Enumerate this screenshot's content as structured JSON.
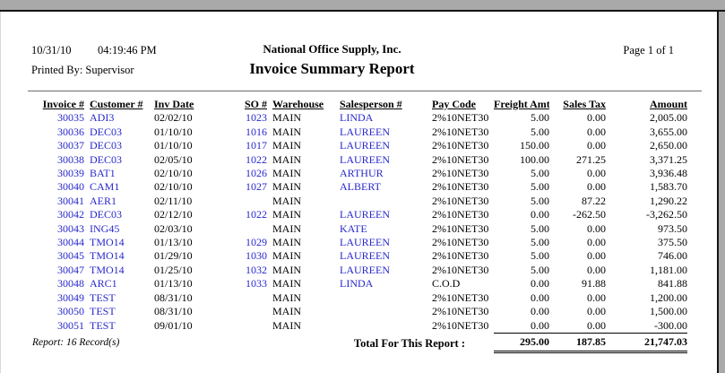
{
  "window": {
    "topbar_color": "#a9a9a9"
  },
  "header": {
    "date": "10/31/10",
    "time": "04:19:46 PM",
    "company": "National Office Supply, Inc.",
    "page_label": "Page 1 of 1",
    "printed_by": "Printed By: Supervisor",
    "title": "Invoice Summary Report"
  },
  "table": {
    "columns": [
      "Invoice #",
      "Customer #",
      "Inv Date",
      "SO #",
      "Warehouse",
      "Salesperson #",
      "Pay Code",
      "Freight Amt",
      "Sales Tax",
      "Amount"
    ],
    "rows": [
      [
        "30035",
        "ADI3",
        "02/02/10",
        "1023",
        "MAIN",
        "LINDA",
        "2%10NET30",
        "5.00",
        "0.00",
        "2,005.00"
      ],
      [
        "30036",
        "DEC03",
        "01/10/10",
        "1016",
        "MAIN",
        "LAUREEN",
        "2%10NET30",
        "5.00",
        "0.00",
        "3,655.00"
      ],
      [
        "30037",
        "DEC03",
        "01/10/10",
        "1017",
        "MAIN",
        "LAUREEN",
        "2%10NET30",
        "150.00",
        "0.00",
        "2,650.00"
      ],
      [
        "30038",
        "DEC03",
        "02/05/10",
        "1022",
        "MAIN",
        "LAUREEN",
        "2%10NET30",
        "100.00",
        "271.25",
        "3,371.25"
      ],
      [
        "30039",
        "BAT1",
        "02/10/10",
        "1026",
        "MAIN",
        "ARTHUR",
        "2%10NET30",
        "5.00",
        "0.00",
        "3,936.48"
      ],
      [
        "30040",
        "CAM1",
        "02/10/10",
        "1027",
        "MAIN",
        "ALBERT",
        "2%10NET30",
        "5.00",
        "0.00",
        "1,583.70"
      ],
      [
        "30041",
        "AER1",
        "02/11/10",
        "",
        "MAIN",
        "",
        "2%10NET30",
        "5.00",
        "87.22",
        "1,290.22"
      ],
      [
        "30042",
        "DEC03",
        "02/12/10",
        "1022",
        "MAIN",
        "LAUREEN",
        "2%10NET30",
        "0.00",
        "-262.50",
        "-3,262.50"
      ],
      [
        "30043",
        "ING45",
        "02/03/10",
        "",
        "MAIN",
        "KATE",
        "2%10NET30",
        "5.00",
        "0.00",
        "973.50"
      ],
      [
        "30044",
        "TMO14",
        "01/13/10",
        "1029",
        "MAIN",
        "LAUREEN",
        "2%10NET30",
        "5.00",
        "0.00",
        "375.50"
      ],
      [
        "30045",
        "TMO14",
        "01/29/10",
        "1030",
        "MAIN",
        "LAUREEN",
        "2%10NET30",
        "5.00",
        "0.00",
        "746.00"
      ],
      [
        "30047",
        "TMO14",
        "01/25/10",
        "1032",
        "MAIN",
        "LAUREEN",
        "2%10NET30",
        "5.00",
        "0.00",
        "1,181.00"
      ],
      [
        "30048",
        "ARC1",
        "01/13/10",
        "1033",
        "MAIN",
        "LINDA",
        "C.O.D",
        "0.00",
        "91.88",
        "841.88"
      ],
      [
        "30049",
        "TEST",
        "08/31/10",
        "",
        "MAIN",
        "",
        "2%10NET30",
        "0.00",
        "0.00",
        "1,200.00"
      ],
      [
        "30050",
        "TEST",
        "08/31/10",
        "",
        "MAIN",
        "",
        "2%10NET30",
        "0.00",
        "0.00",
        "1,500.00"
      ],
      [
        "30051",
        "TEST",
        "09/01/10",
        "",
        "MAIN",
        "",
        "2%10NET30",
        "0.00",
        "0.00",
        "-300.00"
      ]
    ],
    "total_label": "Total For This Report :",
    "totals": {
      "freight": "295.00",
      "sales_tax": "187.85",
      "amount": "21,747.03"
    }
  },
  "footer": {
    "record_count": "Report: 16 Record(s)"
  },
  "colors": {
    "link_blue": "#2828cc",
    "text": "#000000"
  }
}
